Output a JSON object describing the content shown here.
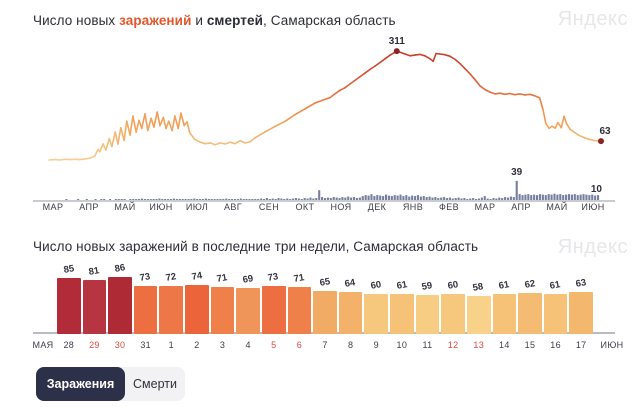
{
  "titles": {
    "main_prefix": "Число новых ",
    "main_accent": "заражений",
    "main_mid": " и ",
    "main_bold": "смертей",
    "main_suffix": ", Самарская область",
    "secondary": "Число новых заражений в последние три недели, Самарская область"
  },
  "watermark": "Яндекс",
  "buttons": {
    "infections": "Заражения",
    "deaths": "Смерти"
  },
  "colors": {
    "accent_orange": "#e1572b",
    "dark_text": "#2c2d37",
    "label_text": "#32333d",
    "axis_gray": "#b9bbc2",
    "weekend_red": "#e04a3f",
    "deaths_bar": "#777f9e",
    "marker_dot": "#8d2424",
    "active_tab_bg": "#2d3049",
    "tab_bg": "#f2f2f4",
    "line_gradient_anchors": [
      [
        0,
        "#f6d196"
      ],
      [
        60,
        "#f4bd79"
      ],
      [
        100,
        "#f1a85f"
      ],
      [
        140,
        "#ee924e"
      ],
      [
        180,
        "#e97a42"
      ],
      [
        220,
        "#e06038"
      ],
      [
        260,
        "#d34b30"
      ],
      [
        311,
        "#c23e2e"
      ]
    ]
  },
  "chart_data": [
    {
      "type": "line",
      "title": "Число новых заражений и смертей, Самарская область",
      "x_axis_months": [
        "МАР",
        "АПР",
        "МАЙ",
        "ИЮН",
        "ИЮЛ",
        "АВГ",
        "СЕН",
        "ОКТ",
        "НОЯ",
        "ДЕК",
        "ЯНВ",
        "ФЕВ",
        "МАР",
        "АПР",
        "МАЙ",
        "ИЮН"
      ],
      "grid": false,
      "series": [
        {
          "name": "заражения",
          "kind": "line",
          "peak_label": "311",
          "peak_value": 311,
          "last_label": "63",
          "last_value": 63,
          "points": [
            [
              0.0,
              11
            ],
            [
              0.011,
              12
            ],
            [
              0.02,
              11
            ],
            [
              0.029,
              13
            ],
            [
              0.038,
              12
            ],
            [
              0.047,
              13
            ],
            [
              0.056,
              12
            ],
            [
              0.065,
              14
            ],
            [
              0.074,
              16
            ],
            [
              0.083,
              22
            ],
            [
              0.089,
              40
            ],
            [
              0.092,
              34
            ],
            [
              0.098,
              55
            ],
            [
              0.103,
              38
            ],
            [
              0.109,
              70
            ],
            [
              0.114,
              48
            ],
            [
              0.12,
              88
            ],
            [
              0.125,
              55
            ],
            [
              0.13,
              100
            ],
            [
              0.136,
              65
            ],
            [
              0.141,
              118
            ],
            [
              0.147,
              80
            ],
            [
              0.152,
              132
            ],
            [
              0.158,
              88
            ],
            [
              0.163,
              120
            ],
            [
              0.168,
              98
            ],
            [
              0.174,
              138
            ],
            [
              0.179,
              92
            ],
            [
              0.185,
              126
            ],
            [
              0.19,
              102
            ],
            [
              0.196,
              143
            ],
            [
              0.201,
              106
            ],
            [
              0.207,
              128
            ],
            [
              0.212,
              98
            ],
            [
              0.217,
              118
            ],
            [
              0.223,
              92
            ],
            [
              0.228,
              132
            ],
            [
              0.234,
              98
            ],
            [
              0.239,
              140
            ],
            [
              0.245,
              106
            ],
            [
              0.25,
              116
            ],
            [
              0.255,
              86
            ],
            [
              0.264,
              68
            ],
            [
              0.274,
              60
            ],
            [
              0.283,
              56
            ],
            [
              0.292,
              58
            ],
            [
              0.301,
              53
            ],
            [
              0.31,
              58
            ],
            [
              0.319,
              55
            ],
            [
              0.328,
              60
            ],
            [
              0.337,
              56
            ],
            [
              0.346,
              64
            ],
            [
              0.355,
              58
            ],
            [
              0.364,
              61
            ],
            [
              0.373,
              72
            ],
            [
              0.391,
              88
            ],
            [
              0.409,
              103
            ],
            [
              0.428,
              118
            ],
            [
              0.446,
              136
            ],
            [
              0.464,
              152
            ],
            [
              0.482,
              168
            ],
            [
              0.5,
              178
            ],
            [
              0.509,
              183
            ],
            [
              0.518,
              193
            ],
            [
              0.527,
              203
            ],
            [
              0.536,
              210
            ],
            [
              0.545,
              220
            ],
            [
              0.554,
              230
            ],
            [
              0.563,
              240
            ],
            [
              0.572,
              250
            ],
            [
              0.581,
              260
            ],
            [
              0.591,
              270
            ],
            [
              0.6,
              280
            ],
            [
              0.609,
              290
            ],
            [
              0.618,
              300
            ],
            [
              0.627,
              308
            ],
            [
              0.63,
              311
            ],
            [
              0.636,
              308
            ],
            [
              0.645,
              303
            ],
            [
              0.654,
              298
            ],
            [
              0.663,
              300
            ],
            [
              0.672,
              302
            ],
            [
              0.681,
              298
            ],
            [
              0.69,
              290
            ],
            [
              0.696,
              283
            ],
            [
              0.701,
              304
            ],
            [
              0.708,
              303
            ],
            [
              0.717,
              301
            ],
            [
              0.726,
              297
            ],
            [
              0.736,
              288
            ],
            [
              0.745,
              276
            ],
            [
              0.754,
              262
            ],
            [
              0.763,
              248
            ],
            [
              0.772,
              232
            ],
            [
              0.781,
              215
            ],
            [
              0.79,
              205
            ],
            [
              0.799,
              198
            ],
            [
              0.808,
              193
            ],
            [
              0.817,
              195
            ],
            [
              0.826,
              192
            ],
            [
              0.835,
              194
            ],
            [
              0.844,
              191
            ],
            [
              0.853,
              193
            ],
            [
              0.862,
              190
            ],
            [
              0.871,
              192
            ],
            [
              0.88,
              188
            ],
            [
              0.889,
              182
            ],
            [
              0.895,
              150
            ],
            [
              0.9,
              112
            ],
            [
              0.906,
              98
            ],
            [
              0.911,
              104
            ],
            [
              0.917,
              99
            ],
            [
              0.922,
              114
            ],
            [
              0.928,
              100
            ],
            [
              0.933,
              131
            ],
            [
              0.938,
              110
            ],
            [
              0.944,
              96
            ],
            [
              0.949,
              90
            ],
            [
              0.955,
              84
            ],
            [
              0.96,
              79
            ],
            [
              0.966,
              75
            ],
            [
              0.971,
              72
            ],
            [
              0.977,
              69
            ],
            [
              0.982,
              67
            ],
            [
              0.987,
              65
            ],
            [
              0.993,
              64
            ],
            [
              1.0,
              63
            ]
          ]
        },
        {
          "name": "смерти",
          "kind": "bar",
          "peak_label": "39",
          "peak_value": 39,
          "last_label": "10",
          "last_value": 10,
          "values": [
            0,
            0,
            0,
            0,
            0,
            0,
            1,
            0,
            0,
            0,
            1,
            0,
            0,
            1,
            0,
            0,
            1,
            0,
            1,
            1,
            0,
            1,
            0,
            1,
            1,
            2,
            1,
            0,
            2,
            1,
            2,
            1,
            3,
            1,
            2,
            1,
            2,
            1,
            3,
            2,
            1,
            2,
            1,
            3,
            2,
            1,
            2,
            2,
            1,
            2,
            3,
            1,
            2,
            2,
            3,
            2,
            1,
            2,
            2,
            1,
            2,
            3,
            2,
            2,
            1,
            2,
            3,
            2,
            2,
            1,
            2,
            2,
            2,
            3,
            2,
            4,
            2,
            3,
            2,
            4,
            3,
            2,
            3,
            2,
            3,
            4,
            3,
            2,
            4,
            3,
            5,
            3,
            4,
            20,
            6,
            4,
            5,
            4,
            6,
            5,
            4,
            6,
            5,
            7,
            5,
            6,
            4,
            5,
            8,
            10,
            9,
            12,
            8,
            10,
            9,
            8,
            11,
            9,
            8,
            10,
            9,
            11,
            8,
            10,
            7,
            9,
            8,
            10,
            7,
            8,
            6,
            7,
            5,
            6,
            4,
            5,
            6,
            4,
            5,
            3,
            4,
            5,
            3,
            4,
            2,
            3,
            4,
            2,
            3,
            5,
            8,
            3,
            2,
            4,
            3,
            5,
            4,
            6,
            5,
            7,
            6,
            39,
            12,
            10,
            11,
            12,
            10,
            11,
            10,
            12,
            11,
            10,
            12,
            11,
            13,
            11,
            12,
            10,
            11,
            12,
            11,
            12,
            10,
            11,
            12,
            11,
            10,
            11,
            9,
            10
          ]
        }
      ]
    },
    {
      "type": "bar",
      "title": "Число новых заражений в последние три недели, Самарская область",
      "month_left": "МАЯ",
      "month_right": "ИЮН",
      "categories": [
        "28",
        "29",
        "30",
        "31",
        "1",
        "2",
        "3",
        "4",
        "5",
        "6",
        "7",
        "8",
        "9",
        "10",
        "11",
        "12",
        "13",
        "14",
        "15",
        "16",
        "17"
      ],
      "values": [
        85,
        81,
        86,
        73,
        72,
        74,
        71,
        69,
        73,
        71,
        65,
        64,
        60,
        61,
        59,
        60,
        58,
        61,
        62,
        61,
        63
      ],
      "weekend_indices": [
        1,
        2,
        8,
        9,
        15,
        16
      ],
      "bar_colors": [
        "#b12c38",
        "#b73441",
        "#ae2a35",
        "#ed6e41",
        "#ee7747",
        "#ec6439",
        "#ef8049",
        "#f0955a",
        "#ed6e41",
        "#ef8049",
        "#f2ab64",
        "#f3b169",
        "#f6c87e",
        "#f5c278",
        "#f7cd83",
        "#f6c87e",
        "#f8d28a",
        "#f5c278",
        "#f4bc73",
        "#f5c278",
        "#f4b76e"
      ],
      "ylim": [
        0,
        90
      ]
    }
  ]
}
